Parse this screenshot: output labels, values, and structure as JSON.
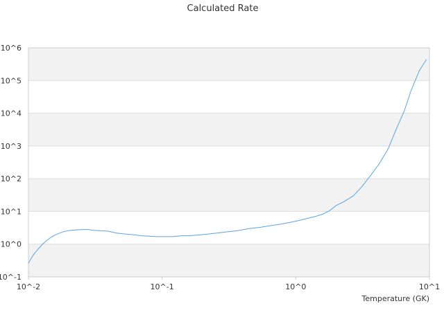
{
  "chart_data": {
    "type": "line",
    "title": "Calculated Rate",
    "xlabel": "Temperature (GK)",
    "ylabel": "",
    "x_scale": "log",
    "y_scale": "log",
    "xlim": [
      0.01,
      10
    ],
    "ylim": [
      0.1,
      1000000
    ],
    "x_ticks": [
      "10^-2",
      "10^-1",
      "10^0",
      "10^1"
    ],
    "y_ticks": [
      "10^-1",
      "10^0",
      "10^1",
      "10^2",
      "10^3",
      "10^4",
      "10^5",
      "10^6"
    ],
    "grid": true,
    "legend": "none",
    "colors": {
      "line": "#5ba3e0",
      "band": "#f2f2f2",
      "grid": "#dddddd",
      "axis": "#cccccc"
    },
    "series": [
      {
        "x": [
          0.01,
          0.0105,
          0.011,
          0.0118,
          0.0126,
          0.0137,
          0.015,
          0.0165,
          0.018,
          0.02,
          0.023,
          0.026,
          0.028,
          0.031,
          0.035,
          0.039,
          0.045,
          0.052,
          0.06,
          0.07,
          0.08,
          0.09,
          0.1,
          0.12,
          0.14,
          0.16,
          0.2,
          0.25,
          0.3,
          0.36,
          0.45,
          0.55,
          0.63,
          0.75,
          0.9,
          1.0,
          1.2,
          1.4,
          1.6,
          1.8,
          2.0,
          2.3,
          2.7,
          3.1,
          3.6,
          4.2,
          4.9,
          5.6,
          6.5,
          7.3,
          8.4,
          9.5
        ],
        "values": [
          0.26,
          0.37,
          0.5,
          0.7,
          0.95,
          1.3,
          1.7,
          2.05,
          2.35,
          2.6,
          2.75,
          2.8,
          2.8,
          2.65,
          2.55,
          2.5,
          2.2,
          2.05,
          1.95,
          1.8,
          1.75,
          1.7,
          1.7,
          1.7,
          1.8,
          1.8,
          1.95,
          2.15,
          2.35,
          2.55,
          3.0,
          3.3,
          3.6,
          4.0,
          4.6,
          5.0,
          6.0,
          7.0,
          8.3,
          10.7,
          15,
          20,
          30,
          55,
          120,
          280,
          800,
          3000,
          12000,
          50000,
          200000,
          440000
        ]
      }
    ]
  }
}
